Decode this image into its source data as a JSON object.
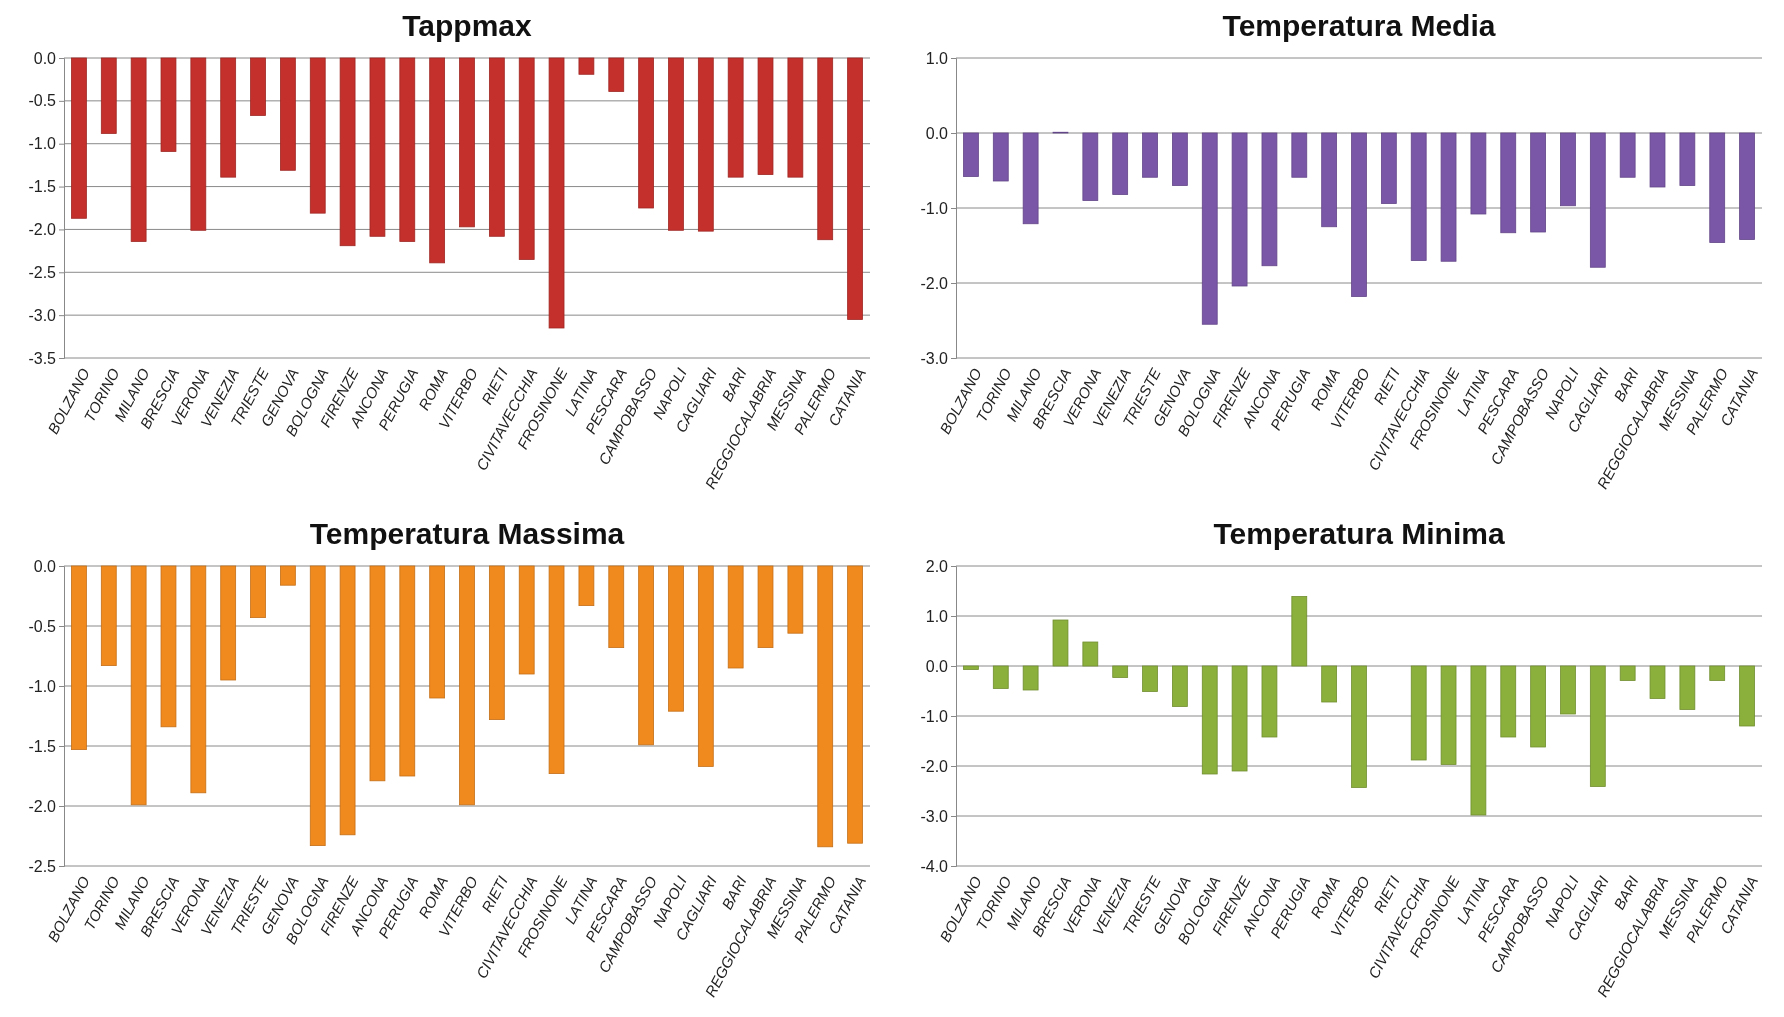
{
  "chart_data": [
    {
      "type": "bar",
      "title": "Tappmax",
      "categories": [
        "BOLZANO",
        "TORINO",
        "MILANO",
        "BRESCIA",
        "VERONA",
        "VENEZIA",
        "TRIESTE",
        "GENOVA",
        "BOLOGNA",
        "FIRENZE",
        "ANCONA",
        "PERUGIA",
        "ROMA",
        "VITERBO",
        "RIETI",
        "CIVITAVECCHIA",
        "FROSINONE",
        "LATINA",
        "PESCARA",
        "CAMPOBASSO",
        "NAPOLI",
        "CAGLIARI",
        "BARI",
        "REGGIOCALABRIA",
        "MESSINA",
        "PALERMO",
        "CATANIA"
      ],
      "series": [
        {
          "color": "#c4302b",
          "values": [
            -1.87,
            -0.88,
            -2.14,
            -1.09,
            -2.01,
            -1.39,
            -0.67,
            -1.31,
            -1.81,
            -2.19,
            -2.08,
            -2.14,
            -2.39,
            -1.97,
            -2.08,
            -2.35,
            -3.15,
            -0.19,
            -0.39,
            -1.75,
            -2.01,
            -2.02,
            -1.39,
            -1.36,
            -1.39,
            -2.12,
            -3.05
          ]
        }
      ],
      "ylim": [
        -3.5,
        0
      ],
      "yticks": [
        {
          "value": 0,
          "label": "0.0"
        },
        {
          "value": -0.5,
          "label": "-0.5"
        },
        {
          "value": -1,
          "label": "-1.0"
        },
        {
          "value": -1.5,
          "label": "-1.5"
        },
        {
          "value": -2,
          "label": "-2.0"
        },
        {
          "value": -2.5,
          "label": "-2.5"
        },
        {
          "value": -3,
          "label": "-3.0"
        },
        {
          "value": -3.5,
          "label": "-3.5"
        }
      ],
      "grid": "y"
    },
    {
      "type": "bar",
      "title": "Temperatura Media",
      "categories": [
        "BOLZANO",
        "TORINO",
        "MILANO",
        "BRESCIA",
        "VERONA",
        "VENEZIA",
        "TRIESTE",
        "GENOVA",
        "BOLOGNA",
        "FIRENZE",
        "ANCONA",
        "PERUGIA",
        "ROMA",
        "VITERBO",
        "RIETI",
        "CIVITAVECCHIA",
        "FROSINONE",
        "LATINA",
        "PESCARA",
        "CAMPOBASSO",
        "NAPOLI",
        "CAGLIARI",
        "BARI",
        "REGGIOCALABRIA",
        "MESSINA",
        "PALERMO",
        "CATANIA"
      ],
      "series": [
        {
          "color": "#7b57a8",
          "values": [
            -0.58,
            -0.64,
            -1.21,
            0.01,
            -0.9,
            -0.82,
            -0.59,
            -0.7,
            -2.55,
            -2.04,
            -1.77,
            -0.59,
            -1.25,
            -2.18,
            -0.94,
            -1.7,
            -1.71,
            -1.08,
            -1.33,
            -1.32,
            -0.97,
            -1.79,
            -0.59,
            -0.72,
            -0.7,
            -1.46,
            -1.42
          ]
        }
      ],
      "ylim": [
        -3,
        1
      ],
      "yticks": [
        {
          "value": 1,
          "label": "1.0"
        },
        {
          "value": 0,
          "label": "0.0"
        },
        {
          "value": -1,
          "label": "-1.0"
        },
        {
          "value": -2,
          "label": "-2.0"
        },
        {
          "value": -3,
          "label": "-3.0"
        }
      ],
      "grid": "y"
    },
    {
      "type": "bar",
      "title": "Temperatura Massima",
      "categories": [
        "BOLZANO",
        "TORINO",
        "MILANO",
        "BRESCIA",
        "VERONA",
        "VENEZIA",
        "TRIESTE",
        "GENOVA",
        "BOLOGNA",
        "FIRENZE",
        "ANCONA",
        "PERUGIA",
        "ROMA",
        "VITERBO",
        "RIETI",
        "CIVITAVECCHIA",
        "FROSINONE",
        "LATINA",
        "PESCARA",
        "CAMPOBASSO",
        "NAPOLI",
        "CAGLIARI",
        "BARI",
        "REGGIOCALABRIA",
        "MESSINA",
        "PALERMO",
        "CATANIA"
      ],
      "series": [
        {
          "color": "#f18a1e",
          "values": [
            -1.53,
            -0.83,
            -1.99,
            -1.34,
            -1.89,
            -0.95,
            -0.43,
            -0.16,
            -2.33,
            -2.24,
            -1.79,
            -1.75,
            -1.1,
            -1.99,
            -1.28,
            -0.9,
            -1.73,
            -0.33,
            -0.68,
            -1.49,
            -1.21,
            -1.67,
            -0.85,
            -0.68,
            -0.56,
            -2.34,
            -2.31
          ]
        }
      ],
      "ylim": [
        -2.5,
        0
      ],
      "yticks": [
        {
          "value": 0,
          "label": "0.0"
        },
        {
          "value": -0.5,
          "label": "-0.5"
        },
        {
          "value": -1,
          "label": "-1.0"
        },
        {
          "value": -1.5,
          "label": "-1.5"
        },
        {
          "value": -2,
          "label": "-2.0"
        },
        {
          "value": -2.5,
          "label": "-2.5"
        }
      ],
      "grid": "y"
    },
    {
      "type": "bar",
      "title": "Temperatura Minima",
      "categories": [
        "BOLZANO",
        "TORINO",
        "MILANO",
        "BRESCIA",
        "VERONA",
        "VENEZIA",
        "TRIESTE",
        "GENOVA",
        "BOLOGNA",
        "FIRENZE",
        "ANCONA",
        "PERUGIA",
        "ROMA",
        "VITERBO",
        "RIETI",
        "CIVITAVECCHIA",
        "FROSINONE",
        "LATINA",
        "PESCARA",
        "CAMPOBASSO",
        "NAPOLI",
        "CAGLIARI",
        "BARI",
        "REGGIOCALABRIA",
        "MESSINA",
        "PALERMO",
        "CATANIA"
      ],
      "series": [
        {
          "color": "#8bb03b",
          "values": [
            -0.07,
            -0.45,
            -0.48,
            0.92,
            0.48,
            -0.23,
            -0.51,
            -0.81,
            -2.16,
            -2.1,
            -1.42,
            1.39,
            -0.72,
            -2.43,
            0,
            -1.88,
            -1.97,
            -2.98,
            -1.42,
            -1.62,
            -0.96,
            -2.41,
            -0.29,
            -0.65,
            -0.87,
            -0.29,
            -1.2
          ]
        }
      ],
      "ylim": [
        -4,
        2
      ],
      "yticks": [
        {
          "value": 2,
          "label": "2.0"
        },
        {
          "value": 1,
          "label": "1.0"
        },
        {
          "value": 0,
          "label": "0.0"
        },
        {
          "value": -1,
          "label": "-1.0"
        },
        {
          "value": -2,
          "label": "-2.0"
        },
        {
          "value": -3,
          "label": "-3.0"
        },
        {
          "value": -4,
          "label": "-4.0"
        }
      ],
      "grid": "y"
    }
  ]
}
